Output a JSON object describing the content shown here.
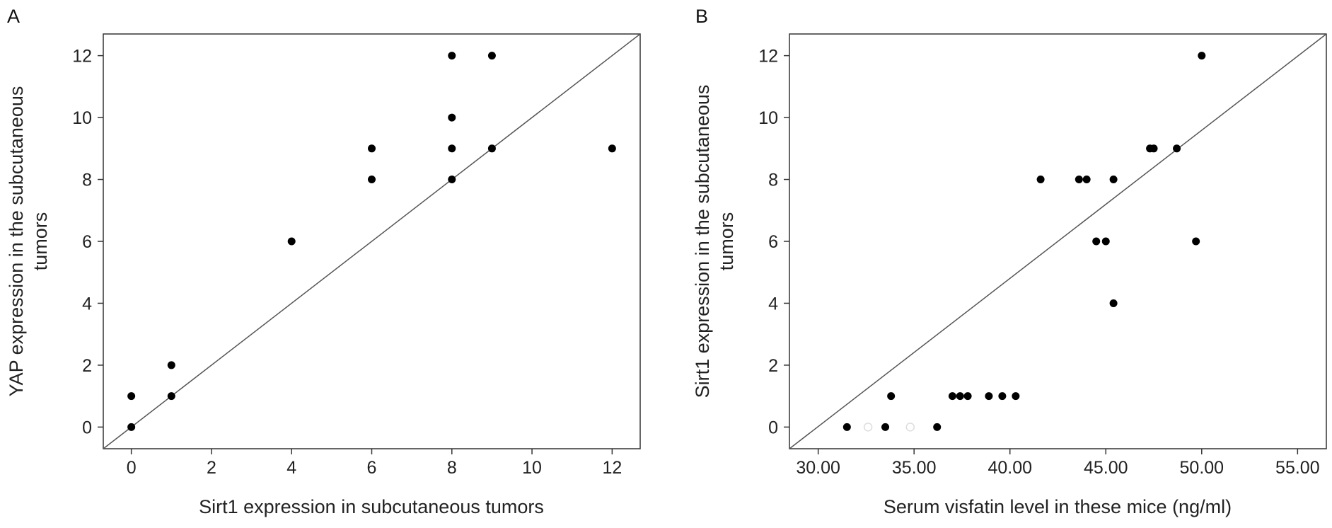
{
  "chart_data": [
    {
      "type": "scatter",
      "panel": "A",
      "xlabel": "Sirt1 expression in subcutaneous tumors",
      "ylabel": [
        "YAP expression in the subcutaneous",
        "tumors"
      ],
      "xlim": [
        -0.7,
        12.7
      ],
      "ylim": [
        -0.7,
        12.7
      ],
      "xticks": [
        0,
        2,
        4,
        6,
        8,
        10,
        12
      ],
      "xtick_labels": [
        "0",
        "2",
        "4",
        "6",
        "8",
        "10",
        "12"
      ],
      "yticks": [
        0,
        2,
        4,
        6,
        8,
        10,
        12
      ],
      "ytick_labels": [
        "0",
        "2",
        "4",
        "6",
        "8",
        "10",
        "12"
      ],
      "grid": false,
      "reference_line": "diagonal",
      "points": [
        {
          "x": 0,
          "y": 0
        },
        {
          "x": 0,
          "y": 1
        },
        {
          "x": 1,
          "y": 1
        },
        {
          "x": 1,
          "y": 2
        },
        {
          "x": 4,
          "y": 6
        },
        {
          "x": 6,
          "y": 8
        },
        {
          "x": 6,
          "y": 9
        },
        {
          "x": 8,
          "y": 8
        },
        {
          "x": 8,
          "y": 9
        },
        {
          "x": 8,
          "y": 10
        },
        {
          "x": 8,
          "y": 12
        },
        {
          "x": 9,
          "y": 9
        },
        {
          "x": 9,
          "y": 12
        },
        {
          "x": 12,
          "y": 9
        }
      ],
      "point_color": "#000000"
    },
    {
      "type": "scatter",
      "panel": "B",
      "xlabel": "Serum visfatin level in these mice (ng/ml)",
      "ylabel": [
        "Sirt1 expression in the subcutaneous",
        "tumors"
      ],
      "xlim": [
        28.5,
        56.5
      ],
      "ylim": [
        -0.7,
        12.7
      ],
      "xticks": [
        30,
        35,
        40,
        45,
        50,
        55
      ],
      "xtick_labels": [
        "30.00",
        "35.00",
        "40.00",
        "45.00",
        "50.00",
        "55.00"
      ],
      "yticks": [
        0,
        2,
        4,
        6,
        8,
        10,
        12
      ],
      "ytick_labels": [
        "0",
        "2",
        "4",
        "6",
        "8",
        "10",
        "12"
      ],
      "grid": false,
      "reference_line": "diagonal",
      "points": [
        {
          "x": 31.5,
          "y": 0
        },
        {
          "x": 33.5,
          "y": 0
        },
        {
          "x": 36.2,
          "y": 0
        },
        {
          "x": 33.8,
          "y": 1
        },
        {
          "x": 37.0,
          "y": 1
        },
        {
          "x": 37.4,
          "y": 1
        },
        {
          "x": 37.8,
          "y": 1
        },
        {
          "x": 38.9,
          "y": 1
        },
        {
          "x": 39.6,
          "y": 1
        },
        {
          "x": 40.3,
          "y": 1
        },
        {
          "x": 41.6,
          "y": 8
        },
        {
          "x": 43.6,
          "y": 8
        },
        {
          "x": 44.0,
          "y": 8
        },
        {
          "x": 45.4,
          "y": 8
        },
        {
          "x": 44.5,
          "y": 6
        },
        {
          "x": 45.0,
          "y": 6
        },
        {
          "x": 45.4,
          "y": 4
        },
        {
          "x": 47.3,
          "y": 9
        },
        {
          "x": 47.5,
          "y": 9
        },
        {
          "x": 48.7,
          "y": 9
        },
        {
          "x": 49.7,
          "y": 6
        },
        {
          "x": 50.0,
          "y": 12
        }
      ],
      "faint_points": [
        {
          "x": 32.6,
          "y": 0
        },
        {
          "x": 34.8,
          "y": 0
        }
      ],
      "point_color": "#000000",
      "faint_point_color": "#dddddd"
    }
  ]
}
